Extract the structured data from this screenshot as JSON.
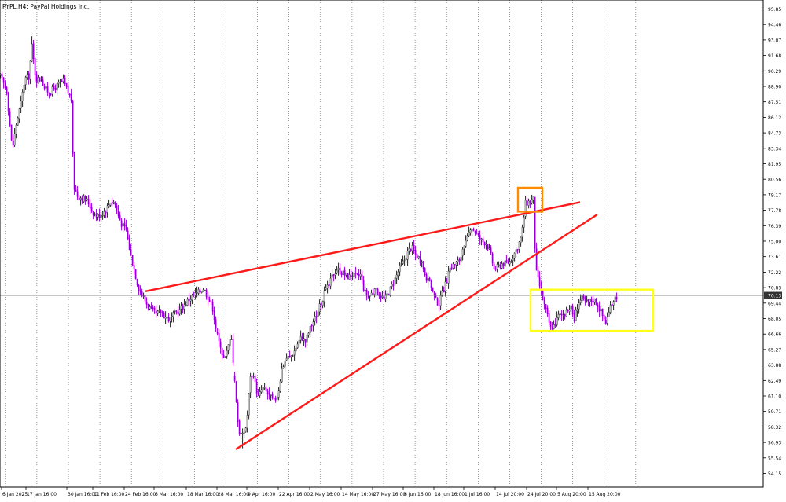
{
  "header": {
    "symbol_label": "PYPL,H4:  PayPal Holdings Inc."
  },
  "price_marker": {
    "value": "70.13",
    "bg": "#333333",
    "fg": "#ffffff"
  },
  "colors": {
    "bull": "#222222",
    "bear": "#9400d3",
    "trend": "#ff1a1a",
    "orange_box": "#ff8c00",
    "yellow_box": "#ffff1a",
    "grid": "#555555"
  },
  "chart_data": {
    "type": "candlestick",
    "title": "PYPL,H4:  PayPal Holdings Inc.",
    "ylim": [
      53.9,
      96.0
    ],
    "y_ticks": [
      "95.85",
      "94.46",
      "93.07",
      "91.68",
      "90.29",
      "88.90",
      "87.51",
      "86.12",
      "84.73",
      "83.34",
      "81.95",
      "80.56",
      "79.17",
      "77.78",
      "76.39",
      "75.00",
      "73.61",
      "72.22",
      "70.83",
      "69.44",
      "68.05",
      "66.66",
      "65.27",
      "63.88",
      "62.49",
      "61.10",
      "59.71",
      "58.32",
      "56.93",
      "55.54",
      "54.15"
    ],
    "x_ticks": [
      "6 Jan 2025",
      "17 Jan 16:00",
      "30 Jan 16:00",
      "11 Feb 16:00",
      "24 Feb 16:00",
      "6 Mar 16:00",
      "18 Mar 16:00",
      "28 Mar 16:00",
      "9 Apr 16:00",
      "22 Apr 16:00",
      "2 May 16:00",
      "14 May 16:00",
      "27 May 16:00",
      "6 Jun 16:00",
      "18 Jun 16:00",
      "1 Jul 16:00",
      "14 Jul 20:00",
      "24 Jul 20:00",
      "5 Aug 20:00",
      "15 Aug 20:00"
    ],
    "current_price": 70.13,
    "series": [
      {
        "name": "price",
        "points": [
          [
            0,
            89.8
          ],
          [
            8,
            88.5
          ],
          [
            15,
            83.2
          ],
          [
            20,
            85.5
          ],
          [
            26,
            87.4
          ],
          [
            31,
            89.6
          ],
          [
            36,
            89.8
          ],
          [
            40,
            92.5
          ],
          [
            45,
            89.5
          ],
          [
            52,
            89.6
          ],
          [
            57,
            88.6
          ],
          [
            63,
            88.4
          ],
          [
            68,
            88.7
          ],
          [
            73,
            89.0
          ],
          [
            80,
            89.4
          ],
          [
            86,
            88.3
          ],
          [
            90,
            87.8
          ],
          [
            93,
            80.0
          ],
          [
            98,
            79.1
          ],
          [
            104,
            78.9
          ],
          [
            111,
            78.6
          ],
          [
            117,
            77.7
          ],
          [
            123,
            77.2
          ],
          [
            129,
            77.5
          ],
          [
            134,
            77.8
          ],
          [
            140,
            78.6
          ],
          [
            145,
            78.5
          ],
          [
            150,
            77.3
          ],
          [
            155,
            76.4
          ],
          [
            160,
            76.0
          ],
          [
            165,
            74.0
          ],
          [
            170,
            72.5
          ],
          [
            175,
            71.0
          ],
          [
            180,
            70.2
          ],
          [
            186,
            69.4
          ],
          [
            192,
            68.8
          ],
          [
            198,
            68.4
          ],
          [
            204,
            68.7
          ],
          [
            210,
            68.2
          ],
          [
            216,
            68.0
          ],
          [
            222,
            68.5
          ],
          [
            228,
            68.8
          ],
          [
            234,
            69.3
          ],
          [
            240,
            69.8
          ],
          [
            246,
            70.1
          ],
          [
            252,
            70.4
          ],
          [
            258,
            70.8
          ],
          [
            264,
            70.0
          ],
          [
            270,
            69.0
          ],
          [
            276,
            66.5
          ],
          [
            282,
            64.5
          ],
          [
            288,
            65.0
          ],
          [
            293,
            66.8
          ],
          [
            298,
            62.5
          ],
          [
            303,
            58.0
          ],
          [
            308,
            57.5
          ],
          [
            313,
            58.5
          ],
          [
            318,
            63.0
          ],
          [
            323,
            62.5
          ],
          [
            328,
            61.0
          ],
          [
            333,
            61.8
          ],
          [
            338,
            61.5
          ],
          [
            343,
            61.0
          ],
          [
            348,
            60.6
          ],
          [
            353,
            61.3
          ],
          [
            358,
            63.5
          ],
          [
            363,
            64.5
          ],
          [
            368,
            64.6
          ],
          [
            373,
            65.0
          ],
          [
            378,
            65.8
          ],
          [
            383,
            66.4
          ],
          [
            388,
            66.0
          ],
          [
            393,
            67.0
          ],
          [
            398,
            67.8
          ],
          [
            403,
            68.5
          ],
          [
            408,
            69.5
          ],
          [
            413,
            70.5
          ],
          [
            418,
            71.0
          ],
          [
            423,
            72.0
          ],
          [
            428,
            72.5
          ],
          [
            433,
            72.3
          ],
          [
            438,
            72.0
          ],
          [
            443,
            71.8
          ],
          [
            448,
            72.0
          ],
          [
            453,
            71.8
          ],
          [
            458,
            72.0
          ],
          [
            463,
            70.5
          ],
          [
            468,
            70.0
          ],
          [
            473,
            70.4
          ],
          [
            478,
            70.5
          ],
          [
            483,
            70.2
          ],
          [
            488,
            69.8
          ],
          [
            493,
            70.3
          ],
          [
            498,
            71.0
          ],
          [
            503,
            71.8
          ],
          [
            508,
            72.6
          ],
          [
            513,
            73.2
          ],
          [
            518,
            74.0
          ],
          [
            523,
            74.5
          ],
          [
            528,
            73.8
          ],
          [
            533,
            73.5
          ],
          [
            538,
            72.5
          ],
          [
            543,
            71.5
          ],
          [
            548,
            71.0
          ],
          [
            553,
            69.8
          ],
          [
            558,
            69.4
          ],
          [
            563,
            70.5
          ],
          [
            568,
            71.5
          ],
          [
            573,
            72.8
          ],
          [
            578,
            72.9
          ],
          [
            583,
            73.2
          ],
          [
            588,
            74.0
          ],
          [
            593,
            75.0
          ],
          [
            598,
            76.3
          ],
          [
            603,
            76.0
          ],
          [
            608,
            75.4
          ],
          [
            613,
            75.0
          ],
          [
            618,
            74.9
          ],
          [
            623,
            74.0
          ],
          [
            628,
            72.5
          ],
          [
            633,
            72.7
          ],
          [
            638,
            73.0
          ],
          [
            643,
            73.0
          ],
          [
            648,
            73.2
          ],
          [
            653,
            73.8
          ],
          [
            658,
            74.5
          ],
          [
            663,
            75.5
          ],
          [
            668,
            78.4
          ],
          [
            673,
            78.6
          ],
          [
            678,
            78.8
          ],
          [
            681,
            72.4
          ],
          [
            686,
            71.0
          ],
          [
            691,
            69.5
          ],
          [
            695,
            68.5
          ],
          [
            700,
            67.2
          ],
          [
            705,
            67.5
          ],
          [
            710,
            68.3
          ],
          [
            715,
            68.4
          ],
          [
            720,
            68.5
          ],
          [
            725,
            69.2
          ],
          [
            730,
            68.0
          ],
          [
            735,
            69.5
          ],
          [
            740,
            69.8
          ],
          [
            745,
            69.5
          ],
          [
            750,
            69.6
          ],
          [
            755,
            69.8
          ],
          [
            760,
            69.3
          ],
          [
            765,
            68.5
          ],
          [
            770,
            67.7
          ],
          [
            775,
            68.8
          ],
          [
            780,
            69.8
          ],
          [
            784,
            70.1
          ]
        ]
      }
    ],
    "trendlines": [
      {
        "from": [
          185,
          70.5
        ],
        "to": [
          738,
          78.5
        ]
      },
      {
        "from": [
          300,
          56.3
        ],
        "to": [
          760,
          77.4
        ]
      }
    ]
  }
}
